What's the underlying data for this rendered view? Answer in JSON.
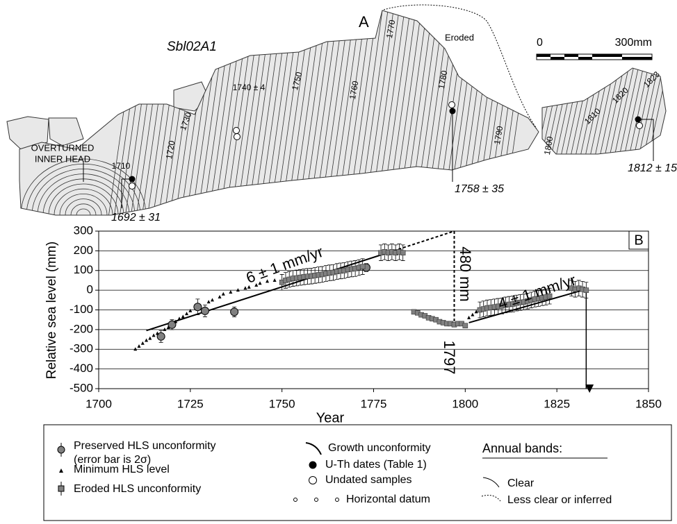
{
  "panel_a": {
    "label": "A",
    "sample": "Sbl02A1",
    "eroded": "Eroded",
    "scale_labels": [
      "0",
      "300mm"
    ],
    "inner_head": [
      "OVERTURNED",
      "INNER HEAD"
    ],
    "band_labels": [
      "1710",
      "1720",
      "1730",
      "1740 ± 4",
      "1750",
      "1760",
      "1770",
      "1780",
      "1790",
      "1800",
      "1810",
      "1820",
      "1823"
    ],
    "dates": [
      "1692 ± 31",
      "1758 ± 35",
      "1812 ± 15"
    ]
  },
  "chart_data": {
    "type": "scatter",
    "label": "B",
    "x_label": "Year",
    "y_label": "Relative sea level (mm)",
    "xlim": [
      1700,
      1850
    ],
    "xticks": [
      1700,
      1725,
      1750,
      1775,
      1800,
      1825,
      1850
    ],
    "ylim": [
      -500,
      300
    ],
    "yticks": [
      300,
      200,
      100,
      0,
      -100,
      -200,
      -300,
      -400,
      -500
    ],
    "grid": true,
    "series": [
      {
        "name": "Preserved HLS unconformity",
        "marker": "circle",
        "color": "#808080",
        "x": [
          1717,
          1720,
          1727,
          1729,
          1737,
          1773
        ],
        "values": [
          -235,
          -175,
          -85,
          -105,
          -110,
          115
        ],
        "errors": [
          30,
          25,
          40,
          30,
          25,
          20
        ]
      },
      {
        "name": "Minimum HLS level",
        "marker": "triangle",
        "color": "#000000",
        "x": [
          1710,
          1711,
          1712,
          1713,
          1714,
          1715,
          1716,
          1718,
          1719,
          1721,
          1722,
          1723,
          1724,
          1725,
          1730,
          1731,
          1733,
          1734,
          1736,
          1738,
          1740,
          1741,
          1743,
          1744,
          1746,
          1748,
          1801,
          1802,
          1803
        ],
        "values": [
          -300,
          -285,
          -270,
          -255,
          -245,
          -230,
          -220,
          -200,
          -190,
          -160,
          -145,
          -135,
          -120,
          -105,
          -60,
          -50,
          -35,
          -20,
          -10,
          0,
          10,
          15,
          25,
          35,
          45,
          50,
          -140,
          -125,
          -110
        ]
      },
      {
        "name": "Eroded HLS unconformity",
        "marker": "square",
        "color": "#808080",
        "x": [
          1750,
          1751,
          1752,
          1753,
          1754,
          1755,
          1756,
          1757,
          1758,
          1759,
          1760,
          1761,
          1762,
          1763,
          1764,
          1765,
          1766,
          1767,
          1768,
          1769,
          1770,
          1771,
          1772,
          1777,
          1778,
          1779,
          1780,
          1781,
          1782,
          1783,
          1786,
          1787,
          1788,
          1789,
          1790,
          1791,
          1792,
          1793,
          1794,
          1795,
          1796,
          1797,
          1798,
          1799,
          1800,
          1804,
          1805,
          1806,
          1807,
          1808,
          1809,
          1810,
          1811,
          1812,
          1813,
          1814,
          1815,
          1816,
          1817,
          1818,
          1819,
          1820,
          1821,
          1822,
          1823,
          1829,
          1830,
          1831,
          1832,
          1833
        ],
        "values": [
          40,
          50,
          55,
          60,
          62,
          65,
          68,
          70,
          72,
          75,
          78,
          80,
          85,
          88,
          90,
          95,
          98,
          100,
          105,
          108,
          110,
          115,
          120,
          190,
          195,
          190,
          195,
          190,
          195,
          190,
          -110,
          -115,
          -125,
          -130,
          -140,
          -145,
          -150,
          -160,
          -165,
          -170,
          -170,
          -175,
          -170,
          -170,
          -180,
          -100,
          -95,
          -90,
          -88,
          -85,
          -82,
          -80,
          -75,
          -72,
          -70,
          -65,
          -62,
          -60,
          -55,
          -50,
          -45,
          -42,
          -38,
          -35,
          -30,
          10,
          5,
          10,
          5,
          0
        ],
        "errors": [
          40,
          40,
          40,
          40,
          40,
          40,
          40,
          40,
          40,
          40,
          40,
          40,
          40,
          40,
          40,
          40,
          40,
          40,
          40,
          40,
          40,
          40,
          40,
          40,
          40,
          40,
          40,
          40,
          40,
          40,
          null,
          null,
          null,
          null,
          null,
          null,
          null,
          null,
          null,
          null,
          null,
          null,
          null,
          null,
          null,
          40,
          40,
          40,
          40,
          40,
          40,
          40,
          40,
          40,
          40,
          40,
          40,
          40,
          40,
          40,
          40,
          40,
          40,
          40,
          40,
          40,
          40,
          40,
          40,
          40
        ]
      }
    ],
    "trend_lines": [
      {
        "style": "solid",
        "x": [
          1713,
          1778
        ],
        "values": [
          -205,
          185
        ]
      },
      {
        "style": "dashed",
        "x": [
          1778,
          1797
        ],
        "values": [
          185,
          300
        ]
      },
      {
        "style": "dashed",
        "x": [
          1797,
          1797
        ],
        "values": [
          300,
          -175
        ]
      },
      {
        "style": "solid",
        "x": [
          1801,
          1833
        ],
        "values": [
          -165,
          5
        ]
      },
      {
        "style": "arrow",
        "x": [
          1833,
          1833
        ],
        "values": [
          5,
          -500
        ]
      }
    ],
    "annotations": [
      "6 ± 1 mm/yr",
      "480 mm",
      "1797",
      "4 ± 1 mm/yr"
    ]
  },
  "legend": {
    "items": [
      "Preserved HLS unconformity",
      "(error bar is 2σ)",
      "Minimum HLS level",
      "Eroded HLS unconformity",
      "Growth unconformity",
      "U-Th dates (Table 1)",
      "Undated samples",
      "Horizontal datum",
      "Annual bands:",
      "Clear",
      "Less clear or inferred"
    ]
  }
}
